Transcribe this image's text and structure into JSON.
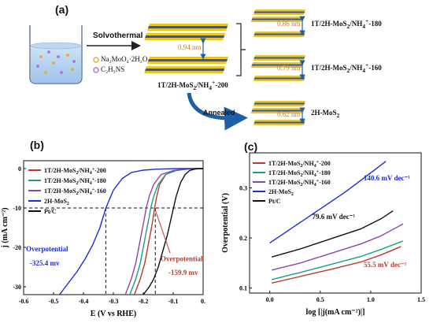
{
  "panel_a": {
    "label": "(a)",
    "process_top": "Solvothermal",
    "reagents": [
      "Na₂MoO₄·2H₂O",
      "C₂H₅NS"
    ],
    "main_product": {
      "base": "1T/2H-MoS",
      "sub": "2",
      "mid": "/NH",
      "sub2": "4",
      "sup": "+",
      "tail": "-200"
    },
    "spacing_main": "0.94 nm",
    "spacing_180": "0.86 nm",
    "spacing_160": "0.79 nm",
    "spacing_2h": "0.62 nm",
    "product_180": {
      "base": "1T/2H-MoS",
      "sub": "2",
      "mid": "/NH",
      "sub2": "4",
      "sup": "+",
      "tail": "-180"
    },
    "product_160": {
      "base": "1T/2H-MoS",
      "sub": "2",
      "mid": "/NH",
      "sub2": "4",
      "sup": "+",
      "tail": "-160"
    },
    "process_bottom": "Annealed",
    "product_2h": {
      "base": "2H-MoS",
      "sub": "2"
    },
    "colors": {
      "yellow_atom": "#e8c81e",
      "blue_atom": "#3c4fb8",
      "arrow_blue": "#1f5fa8",
      "spacing_text": "#c9802a"
    }
  },
  "panel_b": {
    "label": "(b)",
    "chart_data": {
      "type": "line",
      "xlabel": "E (V vs RHE)",
      "ylabel": "j (mA cm⁻²)",
      "xlim": [
        -0.6,
        0.0
      ],
      "ylim": [
        -32,
        2
      ],
      "xticks": [
        "-0.6",
        "-0.5",
        "-0.4",
        "-0.3",
        "-0.2",
        "-0.1",
        "0."
      ],
      "yticks": [
        "0",
        "-10",
        "-20",
        "-30"
      ],
      "reference_line_j": -10,
      "series": [
        {
          "name": "1T/2H-MoS2/NH4+-200",
          "color": "#c0392b",
          "x": [
            -0.23,
            -0.21,
            -0.195,
            -0.185,
            -0.175,
            -0.168,
            -0.162,
            -0.155,
            -0.145,
            -0.125,
            -0.095,
            -0.06,
            -0.02,
            0.0
          ],
          "y": [
            -32,
            -28,
            -24,
            -20,
            -16,
            -13,
            -10,
            -7,
            -4,
            -1.5,
            -0.5,
            -0.1,
            0,
            0
          ]
        },
        {
          "name": "1T/2H-MoS2/NH4+-180",
          "color": "#16a085",
          "x": [
            -0.245,
            -0.225,
            -0.21,
            -0.2,
            -0.19,
            -0.182,
            -0.175,
            -0.165,
            -0.15,
            -0.125,
            -0.09,
            -0.05,
            -0.01,
            0.0
          ],
          "y": [
            -32,
            -28,
            -24,
            -20,
            -16,
            -13,
            -10,
            -7,
            -4,
            -1.5,
            -0.5,
            -0.1,
            0,
            0
          ]
        },
        {
          "name": "1T/2H-MoS2/NH4+-160",
          "color": "#8e44ad",
          "x": [
            -0.26,
            -0.24,
            -0.225,
            -0.215,
            -0.205,
            -0.197,
            -0.19,
            -0.18,
            -0.165,
            -0.14,
            -0.1,
            -0.06,
            -0.02,
            0.0
          ],
          "y": [
            -32,
            -28,
            -24,
            -20,
            -16,
            -13,
            -10,
            -7,
            -4,
            -1.5,
            -0.5,
            -0.1,
            0,
            0
          ]
        },
        {
          "name": "2H-MoS2",
          "color": "#1f2bd6",
          "x": [
            -0.48,
            -0.45,
            -0.42,
            -0.395,
            -0.37,
            -0.345,
            -0.325,
            -0.3,
            -0.27,
            -0.24,
            -0.2,
            -0.16,
            -0.12,
            -0.08,
            -0.04,
            0.0
          ],
          "y": [
            -32,
            -29,
            -26,
            -23,
            -19.5,
            -15,
            -10,
            -5.5,
            -2.5,
            -1,
            -0.4,
            -0.15,
            -0.05,
            0,
            0,
            0
          ]
        },
        {
          "name": "Pt/C",
          "color": "#111111",
          "x": [
            -0.2,
            -0.18,
            -0.165,
            -0.15,
            -0.135,
            -0.12,
            -0.105,
            -0.09,
            -0.075,
            -0.06,
            -0.045,
            -0.03,
            -0.015,
            0.0
          ],
          "y": [
            -32,
            -30,
            -28,
            -25,
            -21,
            -17,
            -12,
            -7,
            -3.5,
            -1.5,
            -0.5,
            -0.15,
            0,
            0
          ]
        }
      ],
      "annotations": [
        {
          "text": "Overpotential",
          "value": "-325.4 mv",
          "color": "#1f2bd6"
        },
        {
          "text": "Overpotential",
          "value": "-159.9 mv",
          "color": "#c0392b"
        }
      ],
      "dashed_markers_x": [
        -0.3254,
        -0.1599
      ]
    }
  },
  "panel_c": {
    "label": "(c)",
    "chart_data": {
      "type": "line",
      "xlabel": "log [|j(mA cm⁻²)|]",
      "ylabel": "Overpotential (V)",
      "xlim": [
        -0.2,
        1.5
      ],
      "ylim": [
        0.09,
        0.37
      ],
      "xticks": [
        "0.0",
        "0.5",
        "1.0",
        "1.5"
      ],
      "yticks": [
        "0.1",
        "0.2",
        "0.3"
      ],
      "series": [
        {
          "name": "1T/2H-MoS2/NH4+-200",
          "color": "#c0392b",
          "x": [
            0.02,
            0.3,
            0.6,
            0.9,
            1.1,
            1.3
          ],
          "y": [
            0.11,
            0.123,
            0.137,
            0.152,
            0.166,
            0.183
          ]
        },
        {
          "name": "1T/2H-MoS2/NH4+-180",
          "color": "#16a085",
          "x": [
            0.02,
            0.3,
            0.6,
            0.9,
            1.1,
            1.32
          ],
          "y": [
            0.117,
            0.131,
            0.147,
            0.163,
            0.177,
            0.194
          ]
        },
        {
          "name": "1T/2H-MoS2/NH4+-160",
          "color": "#8e44ad",
          "x": [
            0.02,
            0.3,
            0.6,
            0.9,
            1.1,
            1.32
          ],
          "y": [
            0.136,
            0.15,
            0.169,
            0.188,
            0.204,
            0.228
          ]
        },
        {
          "name": "2H-MoS2",
          "color": "#1f2bd6",
          "x": [
            0.0,
            0.25,
            0.5,
            0.75,
            1.0,
            1.15
          ],
          "y": [
            0.19,
            0.224,
            0.258,
            0.292,
            0.33,
            0.353
          ]
        },
        {
          "name": "Pt/C",
          "color": "#111111",
          "x": [
            0.02,
            0.3,
            0.6,
            0.9,
            1.1,
            1.22
          ],
          "y": [
            0.162,
            0.178,
            0.198,
            0.218,
            0.238,
            0.254
          ]
        }
      ],
      "annotations": [
        {
          "text": "140.6 mV dec⁻¹",
          "color": "#1f2bd6"
        },
        {
          "text": "79.6 mV dec⁻¹",
          "color": "#111111"
        },
        {
          "text": "55.5 mV dec⁻¹",
          "color": "#c0392b"
        }
      ]
    }
  }
}
